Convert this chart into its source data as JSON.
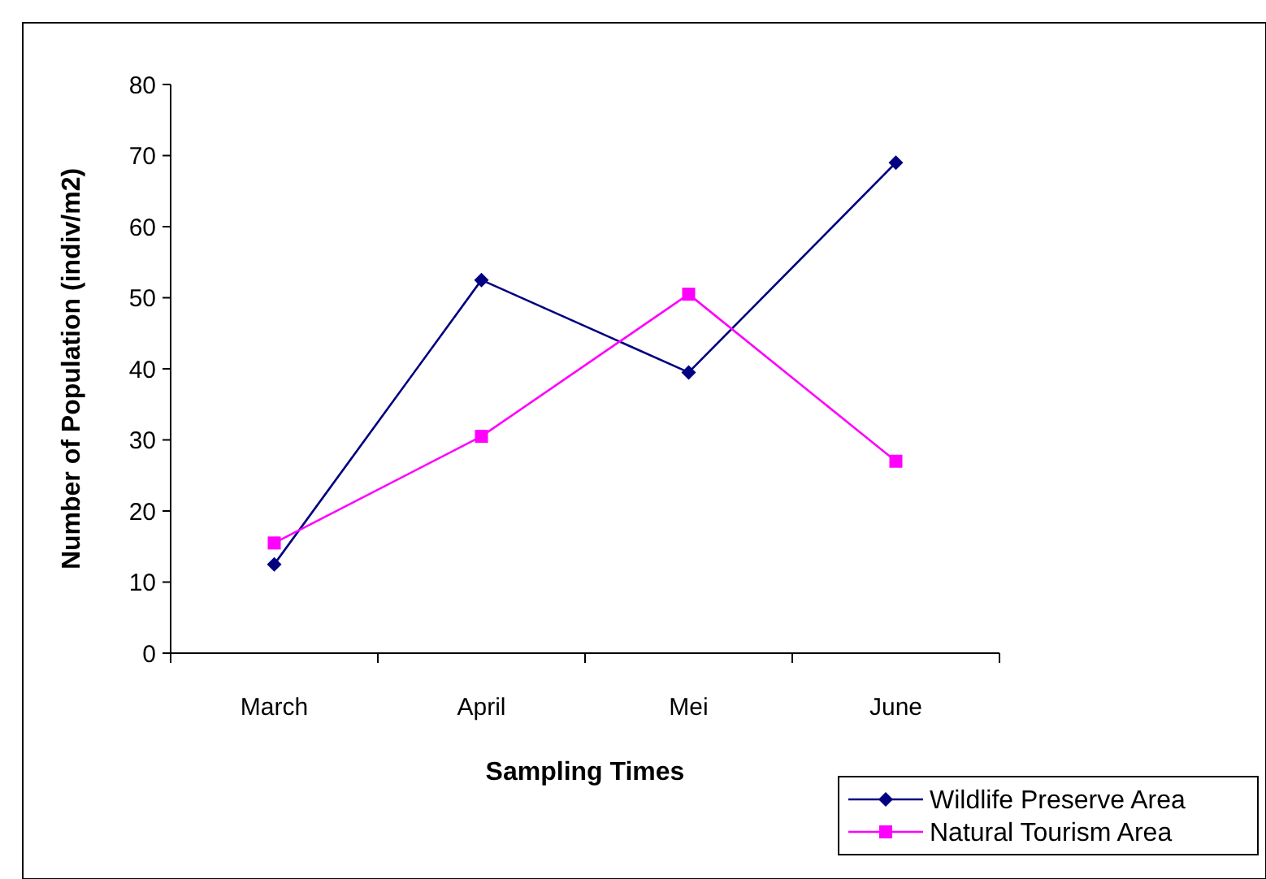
{
  "chart_data": {
    "type": "line",
    "xlabel": "Sampling Times",
    "ylabel": "Number of Population (indiv/m2)",
    "categories": [
      "March",
      "April",
      "Mei",
      "June"
    ],
    "series": [
      {
        "name": "Wildlife Preserve Area",
        "color": "#000080",
        "marker": "diamond",
        "values": [
          12.5,
          52.5,
          39.5,
          69
        ]
      },
      {
        "name": "Natural Tourism Area",
        "color": "#ff00ff",
        "marker": "square",
        "values": [
          15.5,
          30.5,
          50.5,
          27
        ]
      }
    ],
    "ylim": [
      0,
      80
    ],
    "yticks": [
      0,
      10,
      20,
      30,
      40,
      50,
      60,
      70,
      80
    ],
    "grid": false,
    "legend": "bottom right",
    "line_style": "solid"
  }
}
